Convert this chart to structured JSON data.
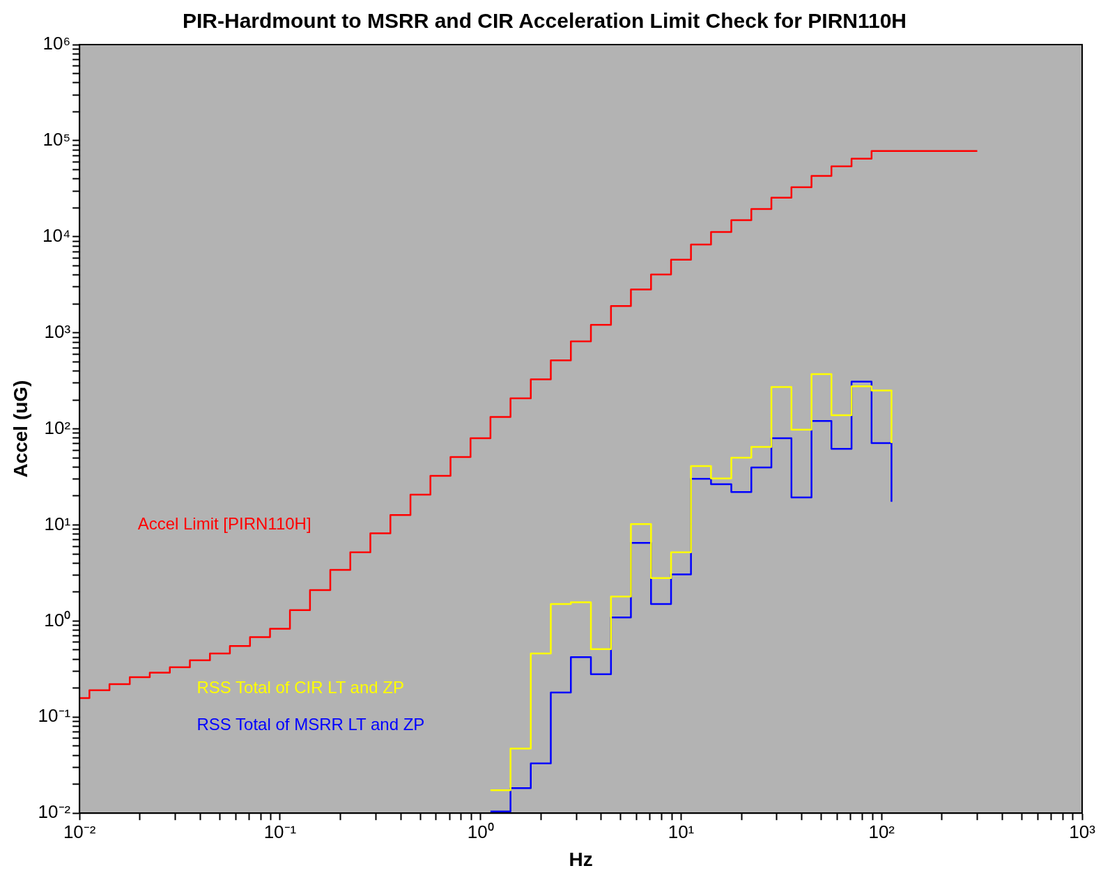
{
  "chart_data": {
    "type": "step",
    "title": "PIR-Hardmount to MSRR and CIR Acceleration Limit Check for PIRN110H",
    "xlabel": "Hz",
    "ylabel": "Accel (uG)",
    "log": "xy",
    "grid": false,
    "legend": false,
    "xlim": [
      0.01,
      1000
    ],
    "ylim": [
      0.01,
      1000000
    ],
    "xticks": [
      {
        "value": 0.01,
        "label": "10⁻²"
      },
      {
        "value": 0.02,
        "label": null
      },
      {
        "value": 0.03,
        "label": null
      },
      {
        "value": 0.04,
        "label": null
      },
      {
        "value": 0.05,
        "label": null
      },
      {
        "value": 0.06,
        "label": null
      },
      {
        "value": 0.07,
        "label": null
      },
      {
        "value": 0.08,
        "label": null
      },
      {
        "value": 0.09,
        "label": null
      },
      {
        "value": 0.1,
        "label": "10⁻¹"
      },
      {
        "value": 0.2,
        "label": null
      },
      {
        "value": 0.3,
        "label": null
      },
      {
        "value": 0.4,
        "label": null
      },
      {
        "value": 0.5,
        "label": null
      },
      {
        "value": 0.6,
        "label": null
      },
      {
        "value": 0.7,
        "label": null
      },
      {
        "value": 0.8,
        "label": null
      },
      {
        "value": 0.9,
        "label": null
      },
      {
        "value": 1,
        "label": "10⁰"
      },
      {
        "value": 2,
        "label": null
      },
      {
        "value": 3,
        "label": null
      },
      {
        "value": 4,
        "label": null
      },
      {
        "value": 5,
        "label": null
      },
      {
        "value": 6,
        "label": null
      },
      {
        "value": 7,
        "label": null
      },
      {
        "value": 8,
        "label": null
      },
      {
        "value": 9,
        "label": null
      },
      {
        "value": 10,
        "label": "10¹"
      },
      {
        "value": 20,
        "label": null
      },
      {
        "value": 30,
        "label": null
      },
      {
        "value": 40,
        "label": null
      },
      {
        "value": 50,
        "label": null
      },
      {
        "value": 60,
        "label": null
      },
      {
        "value": 70,
        "label": null
      },
      {
        "value": 80,
        "label": null
      },
      {
        "value": 90,
        "label": null
      },
      {
        "value": 100,
        "label": "10²"
      },
      {
        "value": 200,
        "label": null
      },
      {
        "value": 300,
        "label": null
      },
      {
        "value": 400,
        "label": null
      },
      {
        "value": 500,
        "label": null
      },
      {
        "value": 600,
        "label": null
      },
      {
        "value": 700,
        "label": null
      },
      {
        "value": 800,
        "label": null
      },
      {
        "value": 900,
        "label": null
      },
      {
        "value": 1000,
        "label": "10³"
      }
    ],
    "yticks": [
      {
        "value": 0.01,
        "label": "10⁻²"
      },
      {
        "value": 0.02,
        "label": null
      },
      {
        "value": 0.03,
        "label": null
      },
      {
        "value": 0.04,
        "label": null
      },
      {
        "value": 0.05,
        "label": null
      },
      {
        "value": 0.06,
        "label": null
      },
      {
        "value": 0.07,
        "label": null
      },
      {
        "value": 0.08,
        "label": null
      },
      {
        "value": 0.09,
        "label": null
      },
      {
        "value": 0.1,
        "label": "10⁻¹"
      },
      {
        "value": 0.2,
        "label": null
      },
      {
        "value": 0.3,
        "label": null
      },
      {
        "value": 0.4,
        "label": null
      },
      {
        "value": 0.5,
        "label": null
      },
      {
        "value": 0.6,
        "label": null
      },
      {
        "value": 0.7,
        "label": null
      },
      {
        "value": 0.8,
        "label": null
      },
      {
        "value": 0.9,
        "label": null
      },
      {
        "value": 1,
        "label": "10⁰"
      },
      {
        "value": 2,
        "label": null
      },
      {
        "value": 3,
        "label": null
      },
      {
        "value": 4,
        "label": null
      },
      {
        "value": 5,
        "label": null
      },
      {
        "value": 6,
        "label": null
      },
      {
        "value": 7,
        "label": null
      },
      {
        "value": 8,
        "label": null
      },
      {
        "value": 9,
        "label": null
      },
      {
        "value": 10,
        "label": "10¹"
      },
      {
        "value": 20,
        "label": null
      },
      {
        "value": 30,
        "label": null
      },
      {
        "value": 40,
        "label": null
      },
      {
        "value": 50,
        "label": null
      },
      {
        "value": 60,
        "label": null
      },
      {
        "value": 70,
        "label": null
      },
      {
        "value": 80,
        "label": null
      },
      {
        "value": 90,
        "label": null
      },
      {
        "value": 100,
        "label": "10²"
      },
      {
        "value": 200,
        "label": null
      },
      {
        "value": 300,
        "label": null
      },
      {
        "value": 400,
        "label": null
      },
      {
        "value": 500,
        "label": null
      },
      {
        "value": 600,
        "label": null
      },
      {
        "value": 700,
        "label": null
      },
      {
        "value": 800,
        "label": null
      },
      {
        "value": 900,
        "label": null
      },
      {
        "value": 1000,
        "label": "10³"
      },
      {
        "value": 2000,
        "label": null
      },
      {
        "value": 3000,
        "label": null
      },
      {
        "value": 4000,
        "label": null
      },
      {
        "value": 5000,
        "label": null
      },
      {
        "value": 6000,
        "label": null
      },
      {
        "value": 7000,
        "label": null
      },
      {
        "value": 8000,
        "label": null
      },
      {
        "value": 9000,
        "label": null
      },
      {
        "value": 10000,
        "label": "10⁴"
      },
      {
        "value": 20000,
        "label": null
      },
      {
        "value": 30000,
        "label": null
      },
      {
        "value": 40000,
        "label": null
      },
      {
        "value": 50000,
        "label": null
      },
      {
        "value": 60000,
        "label": null
      },
      {
        "value": 70000,
        "label": null
      },
      {
        "value": 80000,
        "label": null
      },
      {
        "value": 90000,
        "label": null
      },
      {
        "value": 100000,
        "label": "10⁵"
      },
      {
        "value": 200000,
        "label": null
      },
      {
        "value": 300000,
        "label": null
      },
      {
        "value": 400000,
        "label": null
      },
      {
        "value": 500000,
        "label": null
      },
      {
        "value": 600000,
        "label": null
      },
      {
        "value": 700000,
        "label": null
      },
      {
        "value": 800000,
        "label": null
      },
      {
        "value": 900000,
        "label": null
      },
      {
        "value": 1000000,
        "label": "10⁶"
      }
    ],
    "series": [
      {
        "name": "Accel Limit [PIRN110H]",
        "color": "#ff0000",
        "x": [
          0.01,
          0.0112,
          0.0141,
          0.0178,
          0.0224,
          0.0282,
          0.0355,
          0.0447,
          0.0562,
          0.0708,
          0.0891,
          0.112,
          0.141,
          0.178,
          0.224,
          0.282,
          0.355,
          0.447,
          0.562,
          0.708,
          0.891,
          1.12,
          1.41,
          1.78,
          2.24,
          2.82,
          3.55,
          4.47,
          5.62,
          7.08,
          8.91,
          11.2,
          14.1,
          17.8,
          22.4,
          28.2,
          35.5,
          44.7,
          56.2,
          70.8,
          89.1,
          300
        ],
        "values": [
          0.158,
          0.19,
          0.22,
          0.26,
          0.29,
          0.33,
          0.39,
          0.46,
          0.55,
          0.68,
          0.83,
          1.3,
          2.1,
          3.4,
          5.2,
          8.2,
          12.7,
          20.7,
          32.5,
          51,
          80,
          133,
          208,
          328,
          516,
          815,
          1210,
          1900,
          2830,
          4050,
          5760,
          8300,
          11200,
          14900,
          19400,
          25500,
          32800,
          43000,
          54000,
          65000,
          78000,
          78000
        ]
      },
      {
        "name": "RSS Total of CIR LT and ZP",
        "color": "#ffff00",
        "x": [
          1.12,
          1.41,
          1.78,
          2.24,
          2.82,
          3.55,
          4.47,
          5.62,
          7.08,
          8.91,
          11.2,
          14.1,
          17.8,
          22.4,
          28.2,
          35.5,
          44.7,
          56.2,
          70.8,
          89.1,
          112
        ],
        "values": [
          0.0173,
          0.047,
          0.46,
          1.5,
          1.57,
          0.51,
          1.8,
          10.2,
          2.8,
          5.2,
          41,
          30.5,
          50,
          65,
          273,
          98,
          372,
          139,
          277,
          251,
          71
        ]
      },
      {
        "name": "RSS Total of MSRR LT and ZP",
        "color": "#0000ff",
        "x": [
          1.12,
          1.41,
          1.78,
          2.24,
          2.82,
          3.55,
          4.47,
          5.62,
          7.08,
          8.91,
          11.2,
          14.1,
          17.8,
          22.4,
          28.2,
          35.5,
          44.7,
          56.2,
          70.8,
          89.1,
          112
        ],
        "values": [
          0.0104,
          0.0182,
          0.033,
          0.18,
          0.42,
          0.28,
          1.09,
          6.5,
          1.5,
          3.05,
          30.2,
          26.6,
          22,
          39.7,
          80,
          19.3,
          121,
          62,
          311,
          71,
          17.4
        ]
      }
    ]
  }
}
